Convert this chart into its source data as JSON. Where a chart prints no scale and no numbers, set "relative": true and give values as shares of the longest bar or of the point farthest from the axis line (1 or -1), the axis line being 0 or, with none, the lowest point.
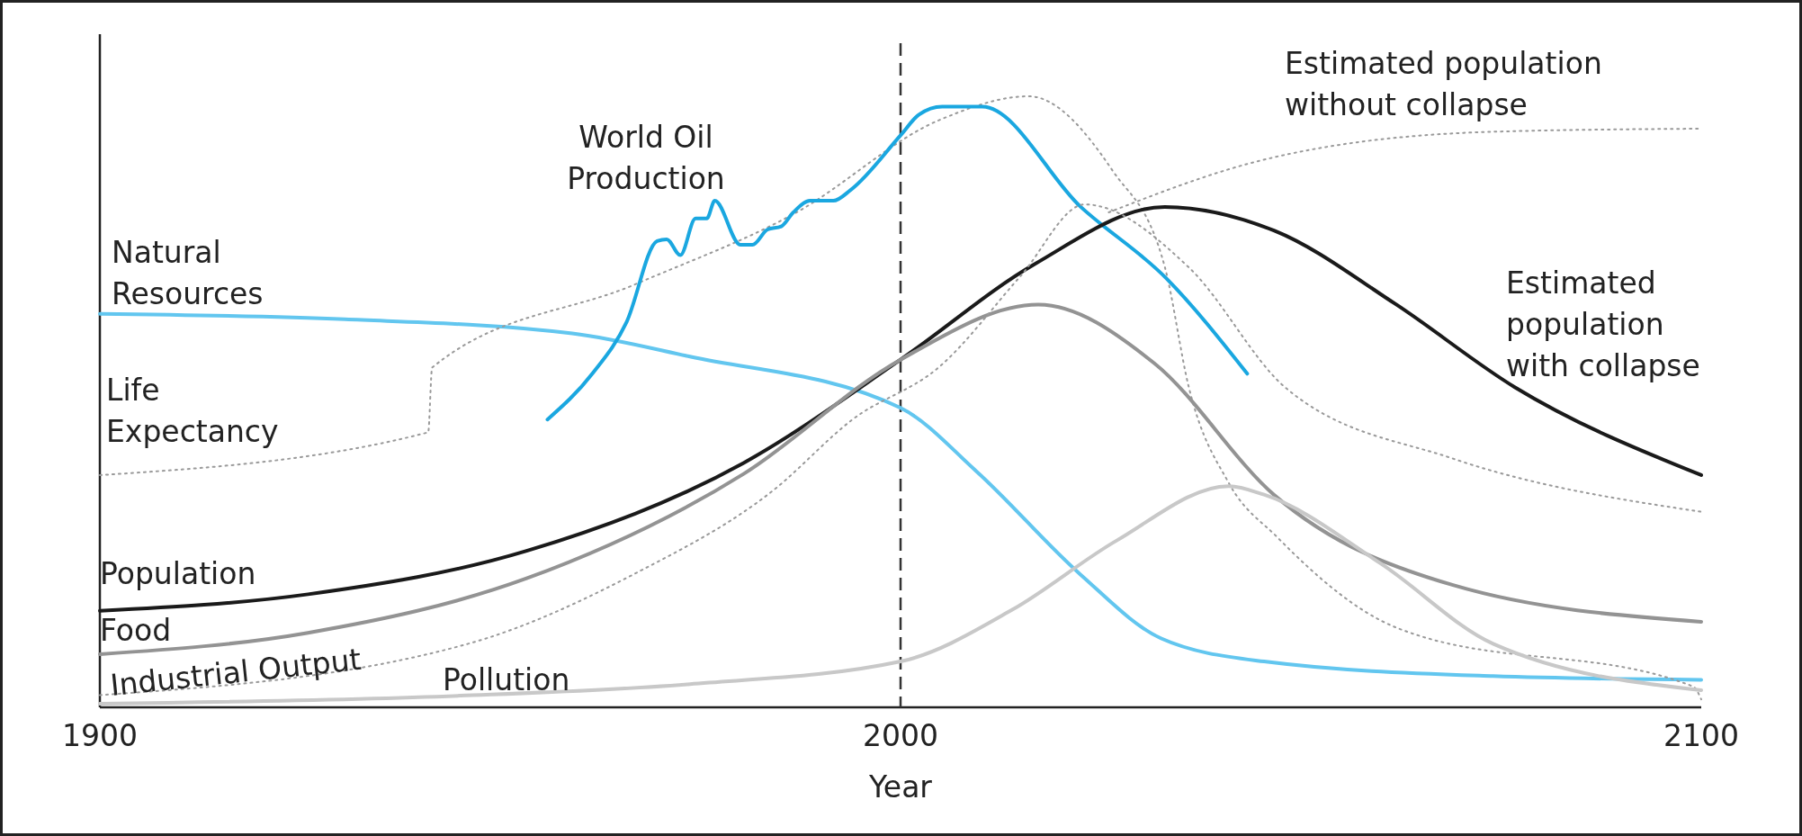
{
  "chart_data": {
    "type": "line",
    "relative": true,
    "xlabel": "Year",
    "xlim": [
      1900,
      2100
    ],
    "xticks": [
      1900,
      2000,
      2100
    ],
    "line_style": "solid",
    "series": [
      {
        "name": "Natural Resources",
        "color": "#62c6ef",
        "x": [
          1900,
          1930.6,
          1959,
          1973.7,
          2000,
          2009.5,
          2022.5,
          2032.5,
          2045.4,
          2074,
          2100
        ],
        "values": [
          0.644,
          0.635,
          0.612,
          0.574,
          0.49,
          0.386,
          0.217,
          0.113,
          0.075,
          0.051,
          0.045
        ]
      },
      {
        "name": "Life Expectancy",
        "color": "#9a9a9a",
        "line_style": "dotted",
        "x": [
          1900,
          1941,
          1941.5,
          1967,
          1987,
          2005,
          2016,
          2026.5,
          2033,
          2036,
          2041,
          2047,
          2062,
          2099,
          2100
        ],
        "values": [
          0.38,
          0.45,
          0.556,
          0.693,
          0.81,
          0.962,
          1.0,
          0.878,
          0.721,
          0.524,
          0.367,
          0.279,
          0.13,
          0.034,
          0.013
        ]
      },
      {
        "name": "World Oil Production",
        "color": "#1aa7e0",
        "x": [
          1955.9,
          1961.5,
          1965.8,
          1969.6,
          1970.8,
          1972.5,
          1974.4,
          1975.8,
          1976.8,
          1980,
          1981.5,
          1983.4,
          1985.1,
          1986.6,
          1988.7,
          1991.6,
          1993.8,
          2000,
          2002.3,
          2005.2,
          2010.2,
          2022.5,
          2033.2,
          2043.3
        ],
        "values": [
          0.471,
          0.546,
          0.631,
          0.763,
          0.766,
          0.74,
          0.8,
          0.8,
          0.829,
          0.757,
          0.757,
          0.782,
          0.787,
          0.81,
          0.829,
          0.829,
          0.847,
          0.936,
          0.97,
          0.983,
          0.983,
          0.819,
          0.702,
          0.546
        ]
      },
      {
        "name": "Population",
        "color": "#1a1a1a",
        "x": [
          1900,
          1926,
          1953.3,
          1980.4,
          2000,
          2016.7,
          2033,
          2046.7,
          2061.7,
          2076.7,
          2100
        ],
        "values": [
          0.158,
          0.185,
          0.256,
          0.4,
          0.569,
          0.725,
          0.819,
          0.78,
          0.661,
          0.524,
          0.38
        ]
      },
      {
        "name": "Food",
        "color": "#939393",
        "x": [
          1900,
          1926,
          1953.3,
          1980.4,
          2000,
          2017.2,
          2031.7,
          2046.7,
          2069,
          2100
        ],
        "values": [
          0.087,
          0.122,
          0.211,
          0.382,
          0.569,
          0.659,
          0.563,
          0.347,
          0.2,
          0.14
        ]
      },
      {
        "name": "Industrial Output",
        "color": "#9a9a9a",
        "line_style": "dotted",
        "x": [
          1900,
          1946,
          1967,
          1984,
          1994,
          2005,
          2015,
          2023,
          2036,
          2048,
          2069,
          2100
        ],
        "values": [
          0.02,
          0.104,
          0.22,
          0.354,
          0.471,
          0.559,
          0.706,
          0.823,
          0.72,
          0.524,
          0.407,
          0.32
        ]
      },
      {
        "name": "Pollution",
        "color": "#c8c8c8",
        "x": [
          1900,
          1945,
          1973.7,
          2000,
          2014,
          2027,
          2041,
          2045.4,
          2060,
          2074,
          2100
        ],
        "values": [
          0.006,
          0.019,
          0.038,
          0.075,
          0.16,
          0.273,
          0.362,
          0.348,
          0.235,
          0.104,
          0.028
        ]
      },
      {
        "name": "Estimated population without collapse",
        "color": "#9a9a9a",
        "line_style": "dotted",
        "x": [
          2026,
          2045,
          2074,
          2100
        ],
        "values": [
          0.81,
          0.895,
          0.942,
          0.947
        ]
      }
    ],
    "ref_lines": [
      {
        "axis": "x",
        "value": 2000,
        "color": "#333333",
        "line_style": "dashed"
      }
    ],
    "annotations": [
      "Estimated population with collapse"
    ]
  }
}
